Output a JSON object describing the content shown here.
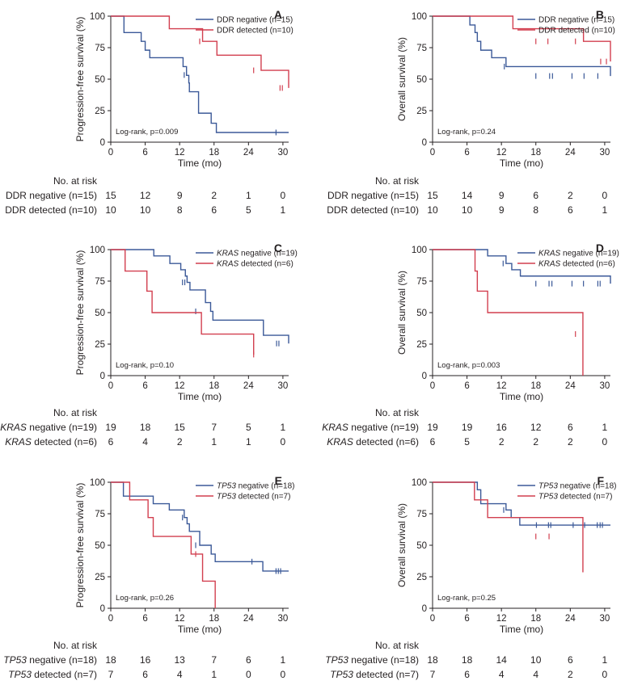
{
  "colors": {
    "negative": "#3b5998",
    "detected": "#d23f4f"
  },
  "xlabel": "Time (mo)",
  "risk_title": "No. at risk",
  "chart_data": [
    {
      "type": "line",
      "panel": "A",
      "ylabel": "Progression-free survival (%)",
      "xlim": [
        0,
        31
      ],
      "ylim": [
        0,
        100
      ],
      "xticks": [
        0,
        6,
        12,
        18,
        24,
        30
      ],
      "yticks": [
        0,
        25,
        50,
        75,
        100
      ],
      "logrank": "Log-rank, p=0.009",
      "series": [
        {
          "gene": "DDR",
          "status": " negative",
          "n": "(n=15)",
          "color": "negative",
          "x": [
            0,
            1.6,
            2.3,
            5.3,
            6.0,
            6.8,
            12.6,
            13.2,
            13.6,
            13.7,
            15.3,
            17.5,
            18.4,
            31
          ],
          "y": [
            100,
            100,
            87,
            80,
            73,
            67,
            60,
            53,
            47,
            40,
            23,
            15,
            7.7,
            7.7
          ],
          "censor_x": [
            12.8,
            28.8
          ],
          "censor_y": [
            53.3,
            7.7
          ],
          "risk": [
            "15",
            "12",
            "9",
            "2",
            "1",
            "0"
          ]
        },
        {
          "gene": "DDR",
          "status": " detected",
          "n": "(n=10)",
          "color": "detected",
          "x": [
            0,
            7.5,
            10.2,
            16.0,
            18.5,
            26.2,
            31
          ],
          "y": [
            100,
            100,
            90,
            80,
            69,
            57,
            43
          ],
          "censor_x": [
            15.5,
            24.9,
            29.5,
            29.9
          ],
          "censor_y": [
            80,
            57,
            43,
            43
          ],
          "risk": [
            "10",
            "10",
            "8",
            "6",
            "5",
            "1"
          ]
        }
      ]
    },
    {
      "type": "line",
      "panel": "B",
      "ylabel": "Overall survival (%)",
      "xlim": [
        0,
        31
      ],
      "ylim": [
        0,
        100
      ],
      "xticks": [
        0,
        6,
        12,
        18,
        24,
        30
      ],
      "yticks": [
        0,
        25,
        50,
        75,
        100
      ],
      "logrank": "Log-rank, p=0.24",
      "series": [
        {
          "gene": "DDR",
          "status": " negative",
          "n": "(n=15)",
          "color": "negative",
          "x": [
            0,
            3.8,
            6.5,
            7.4,
            7.8,
            8.4,
            10.3,
            12.8,
            31
          ],
          "y": [
            100,
            100,
            93,
            87,
            80,
            73,
            67,
            60,
            52.5
          ],
          "censor_x": [
            12.5,
            18.0,
            20.4,
            20.9,
            24.3,
            26.4,
            28.8
          ],
          "censor_y": [
            60,
            52.5,
            52.5,
            52.5,
            52.5,
            52.5,
            52.5
          ],
          "risk": [
            "15",
            "14",
            "9",
            "6",
            "2",
            "0"
          ]
        },
        {
          "gene": "DDR",
          "status": " detected",
          "n": "(n=10)",
          "color": "detected",
          "x": [
            0,
            7.4,
            14.0,
            26.3,
            31
          ],
          "y": [
            100,
            100,
            90,
            80,
            64
          ],
          "censor_x": [
            18.0,
            20.1,
            24.9,
            29.3,
            30.3
          ],
          "censor_y": [
            80,
            80,
            80,
            64,
            64
          ],
          "risk": [
            "10",
            "10",
            "9",
            "8",
            "6",
            "1"
          ]
        }
      ]
    },
    {
      "type": "line",
      "panel": "C",
      "ylabel": "Progression-free survival (%)",
      "xlim": [
        0,
        31
      ],
      "ylim": [
        0,
        100
      ],
      "xticks": [
        0,
        6,
        12,
        18,
        24,
        30
      ],
      "yticks": [
        0,
        25,
        50,
        75,
        100
      ],
      "logrank": "Log-rank, p=0.10",
      "series": [
        {
          "gene": "KRAS",
          "status": " negative",
          "n": "(n=19)",
          "color": "negative",
          "x": [
            0,
            1.8,
            7.5,
            10.3,
            12.2,
            13.0,
            13.3,
            13.8,
            16.5,
            17.4,
            17.8,
            26.6,
            31
          ],
          "y": [
            100,
            100,
            95,
            89,
            84,
            79,
            74,
            68,
            58,
            51,
            44,
            32,
            25.5
          ],
          "censor_x": [
            12.5,
            12.9,
            14.8,
            28.9,
            29.3
          ],
          "censor_y": [
            74,
            74,
            51,
            25.5,
            25.5
          ],
          "risk": [
            "19",
            "18",
            "15",
            "7",
            "5",
            "1"
          ]
        },
        {
          "gene": "KRAS",
          "status": " detected",
          "n": "(n=6)",
          "color": "detected",
          "x": [
            0,
            1.5,
            2.5,
            6.3,
            7.2,
            15.8,
            24.9
          ],
          "y": [
            100,
            100,
            83,
            67,
            50,
            33,
            16.7
          ],
          "censor_x": [
            24.9
          ],
          "censor_y": [
            16.7
          ],
          "risk": [
            "6",
            "4",
            "2",
            "1",
            "1",
            "0"
          ]
        }
      ]
    },
    {
      "type": "line",
      "panel": "D",
      "ylabel": "Overall survival (%)",
      "xlim": [
        0,
        31
      ],
      "ylim": [
        0,
        100
      ],
      "xticks": [
        0,
        6,
        12,
        18,
        24,
        30
      ],
      "yticks": [
        0,
        25,
        50,
        75,
        100
      ],
      "logrank": "Log-rank, p=0.003",
      "series": [
        {
          "gene": "KRAS",
          "status": " negative",
          "n": "(n=19)",
          "color": "negative",
          "x": [
            0,
            7.6,
            9.6,
            12.8,
            13.8,
            15.3,
            31
          ],
          "y": [
            100,
            100,
            95,
            89,
            84,
            79,
            73
          ],
          "censor_x": [
            12.3,
            18.0,
            20.3,
            20.8,
            24.3,
            26.3,
            28.8,
            29.2
          ],
          "censor_y": [
            89,
            73,
            73,
            73,
            73,
            73,
            73,
            73
          ],
          "risk": [
            "19",
            "19",
            "16",
            "12",
            "6",
            "1"
          ]
        },
        {
          "gene": "KRAS",
          "status": " detected",
          "n": "(n=6)",
          "color": "detected",
          "x": [
            0,
            3.8,
            7.4,
            7.8,
            9.6,
            26.2,
            26.2
          ],
          "y": [
            100,
            100,
            83,
            67,
            50,
            33,
            0
          ],
          "censor_x": [
            24.9
          ],
          "censor_y": [
            33
          ],
          "risk": [
            "6",
            "5",
            "2",
            "2",
            "2",
            "0"
          ]
        }
      ]
    },
    {
      "type": "line",
      "panel": "E",
      "ylabel": "Progression-free survival (%)",
      "xlim": [
        0,
        31
      ],
      "ylim": [
        0,
        100
      ],
      "xticks": [
        0,
        6,
        12,
        18,
        24,
        30
      ],
      "yticks": [
        0,
        25,
        50,
        75,
        100
      ],
      "logrank": "Log-rank, p=0.26",
      "series": [
        {
          "gene": "TP53",
          "status": " negative",
          "n": "(n=18)",
          "color": "negative",
          "x": [
            0,
            1.7,
            2.2,
            7.4,
            10.2,
            12.8,
            13.3,
            13.7,
            15.5,
            17.5,
            18.2,
            26.5,
            31
          ],
          "y": [
            100,
            100,
            89,
            83,
            78,
            72,
            67,
            61,
            50,
            43,
            37,
            29.5,
            29.5
          ],
          "censor_x": [
            12.5,
            14.8,
            24.6,
            28.8,
            29.2,
            29.6
          ],
          "censor_y": [
            72,
            50,
            37,
            29.5,
            29.5,
            29.5
          ],
          "risk": [
            "18",
            "16",
            "13",
            "7",
            "6",
            "1"
          ]
        },
        {
          "gene": "TP53",
          "status": " detected",
          "n": "(n=7)",
          "color": "detected",
          "x": [
            0,
            2.6,
            3.3,
            6.5,
            7.4,
            14.0,
            16.0,
            18.2,
            18.2
          ],
          "y": [
            100,
            100,
            86,
            72,
            57,
            43,
            21.5,
            0,
            0
          ],
          "censor_x": [
            14.8
          ],
          "censor_y": [
            43
          ],
          "risk": [
            "7",
            "6",
            "4",
            "1",
            "0",
            "0"
          ]
        }
      ]
    },
    {
      "type": "line",
      "panel": "F",
      "ylabel": "Overall survival (%)",
      "xlim": [
        0,
        31
      ],
      "ylim": [
        0,
        100
      ],
      "xticks": [
        0,
        6,
        12,
        18,
        24,
        30
      ],
      "yticks": [
        0,
        25,
        50,
        75,
        100
      ],
      "logrank": "Log-rank, p=0.25",
      "series": [
        {
          "gene": "TP53",
          "status": " negative",
          "n": "(n=18)",
          "color": "negative",
          "x": [
            0,
            7.4,
            7.8,
            8.4,
            12.8,
            13.7,
            15.2,
            31
          ],
          "y": [
            100,
            100,
            94,
            83,
            78,
            72,
            66,
            66
          ],
          "censor_x": [
            12.4,
            18.1,
            20.2,
            20.6,
            24.5,
            26.5,
            28.7,
            29.2,
            29.6
          ],
          "censor_y": [
            78,
            66,
            66,
            66,
            66,
            66,
            66,
            66,
            66
          ],
          "risk": [
            "18",
            "18",
            "14",
            "10",
            "6",
            "1"
          ]
        },
        {
          "gene": "TP53",
          "status": " detected",
          "n": "(n=7)",
          "color": "detected",
          "x": [
            0,
            3.8,
            7.3,
            9.6,
            26.2,
            26.2
          ],
          "y": [
            100,
            100,
            86,
            72,
            57,
            28.5
          ],
          "censor_x": [
            18.0,
            20.3
          ],
          "censor_y": [
            57,
            57
          ],
          "risk": [
            "7",
            "6",
            "4",
            "4",
            "2",
            "0"
          ]
        }
      ]
    }
  ]
}
